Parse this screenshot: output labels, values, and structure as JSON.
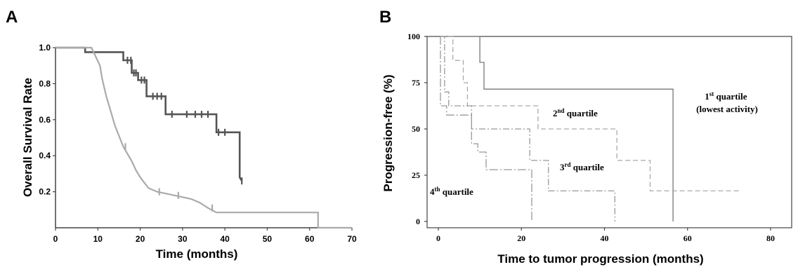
{
  "panels": {
    "a_label": "A",
    "b_label": "B"
  },
  "chart_data": [
    {
      "type": "line",
      "subtype": "kaplan-meier",
      "xlabel": "Time (months)",
      "ylabel": "Overall Survival Rate",
      "xlim": [
        0,
        70
      ],
      "ylim": [
        0,
        1.0
      ],
      "x_ticks": [
        "0",
        "10",
        "20",
        "30",
        "40",
        "50",
        "60",
        "70"
      ],
      "y_ticks": [
        "0.2",
        "0.4",
        "0.6",
        "0.8",
        "1.0"
      ],
      "grid": false,
      "series": [
        {
          "color": "#555555",
          "points": [
            [
              0,
              1.0
            ],
            [
              7,
              1.0
            ],
            [
              7,
              0.975
            ],
            [
              16,
              0.975
            ],
            [
              16,
              0.93
            ],
            [
              18,
              0.93
            ],
            [
              18,
              0.86
            ],
            [
              19.5,
              0.86
            ],
            [
              19.5,
              0.82
            ],
            [
              21.5,
              0.82
            ],
            [
              21.5,
              0.73
            ],
            [
              26,
              0.73
            ],
            [
              26,
              0.63
            ],
            [
              38,
              0.63
            ],
            [
              38,
              0.53
            ],
            [
              43.5,
              0.53
            ],
            [
              43.5,
              0.28
            ],
            [
              44,
              0.26
            ]
          ],
          "censor_x": [
            17,
            17.8,
            18.5,
            19,
            20.3,
            21,
            23,
            24,
            25,
            27.5,
            31,
            33,
            34.5,
            36,
            38.5,
            40,
            44
          ]
        },
        {
          "color": "#aaaaaa",
          "points": [
            [
              0,
              1.0
            ],
            [
              8.5,
              1.0
            ],
            [
              9.5,
              0.95
            ],
            [
              10.5,
              0.9
            ],
            [
              11,
              0.83
            ],
            [
              12,
              0.73
            ],
            [
              13,
              0.65
            ],
            [
              14,
              0.57
            ],
            [
              15,
              0.51
            ],
            [
              16,
              0.45
            ],
            [
              17,
              0.41
            ],
            [
              18,
              0.37
            ],
            [
              19,
              0.32
            ],
            [
              20,
              0.28
            ],
            [
              21,
              0.25
            ],
            [
              22,
              0.22
            ],
            [
              24,
              0.2
            ],
            [
              28,
              0.18
            ],
            [
              32,
              0.16
            ],
            [
              34,
              0.14
            ],
            [
              36,
              0.11
            ],
            [
              38,
              0.085
            ],
            [
              62,
              0.085
            ],
            [
              62,
              0.0
            ],
            [
              70,
              0.0
            ]
          ],
          "censor_x": [
            16.5,
            24.5,
            29,
            37
          ]
        }
      ]
    },
    {
      "type": "line",
      "subtype": "step",
      "xlabel": "Time to tumor progression (months)",
      "ylabel": "Progression-free (%)",
      "xlim": [
        0,
        80
      ],
      "ylim": [
        0,
        100
      ],
      "x_ticks": [
        "0",
        "20",
        "40",
        "60",
        "80"
      ],
      "y_ticks": [
        "0",
        "25",
        "50",
        "75",
        "100"
      ],
      "grid": false,
      "annotations": [
        {
          "text_a": "1",
          "sup": "st",
          "text_b": " quartile",
          "line2": "(lowest activity)"
        },
        {
          "text_a": "2",
          "sup": "nd",
          "text_b": " quartile"
        },
        {
          "text_a": "3",
          "sup": "rd",
          "text_b": " quartile"
        },
        {
          "text_a": "4",
          "sup": "th",
          "text_b": " quartile"
        }
      ],
      "series": [
        {
          "label_ref": "1st quartile",
          "color": "#777777",
          "dash": "",
          "points": [
            [
              0.5,
              100
            ],
            [
              10,
              100
            ],
            [
              10,
              86
            ],
            [
              11,
              86
            ],
            [
              11,
              71.5
            ],
            [
              56.5,
              71.5
            ],
            [
              56.5,
              0
            ]
          ]
        },
        {
          "label_ref": "2nd quartile",
          "color": "#aaaaaa",
          "dash": "7,4",
          "points": [
            [
              0.5,
              100
            ],
            [
              3.5,
              100
            ],
            [
              3.5,
              87
            ],
            [
              6,
              87
            ],
            [
              6,
              75
            ],
            [
              7,
              75
            ],
            [
              7,
              62.5
            ],
            [
              24,
              62.5
            ],
            [
              24,
              50
            ],
            [
              43,
              50
            ],
            [
              43,
              33
            ],
            [
              51,
              33
            ],
            [
              51,
              16.5
            ],
            [
              73,
              16.5
            ]
          ]
        },
        {
          "label_ref": "3rd quartile",
          "color": "#999999",
          "dash": "9,3,2,3",
          "points": [
            [
              0.5,
              100
            ],
            [
              1.5,
              100
            ],
            [
              1.5,
              70
            ],
            [
              2.5,
              70
            ],
            [
              2.5,
              62.5
            ],
            [
              8,
              62.5
            ],
            [
              8,
              50
            ],
            [
              22,
              50
            ],
            [
              22,
              33
            ],
            [
              26.5,
              33
            ],
            [
              26.5,
              16.5
            ],
            [
              42.5,
              16.5
            ],
            [
              42.5,
              0
            ]
          ]
        },
        {
          "label_ref": "4th quartile",
          "color": "#999999",
          "dash": "12,3,2,3",
          "points": [
            [
              0.5,
              100
            ],
            [
              0.5,
              62.5
            ],
            [
              2,
              62.5
            ],
            [
              2,
              57.5
            ],
            [
              8,
              57.5
            ],
            [
              8,
              42
            ],
            [
              9.5,
              42
            ],
            [
              9.5,
              37.5
            ],
            [
              11.5,
              37.5
            ],
            [
              11.5,
              28
            ],
            [
              22.5,
              28
            ],
            [
              22.5,
              0
            ]
          ]
        }
      ]
    }
  ]
}
